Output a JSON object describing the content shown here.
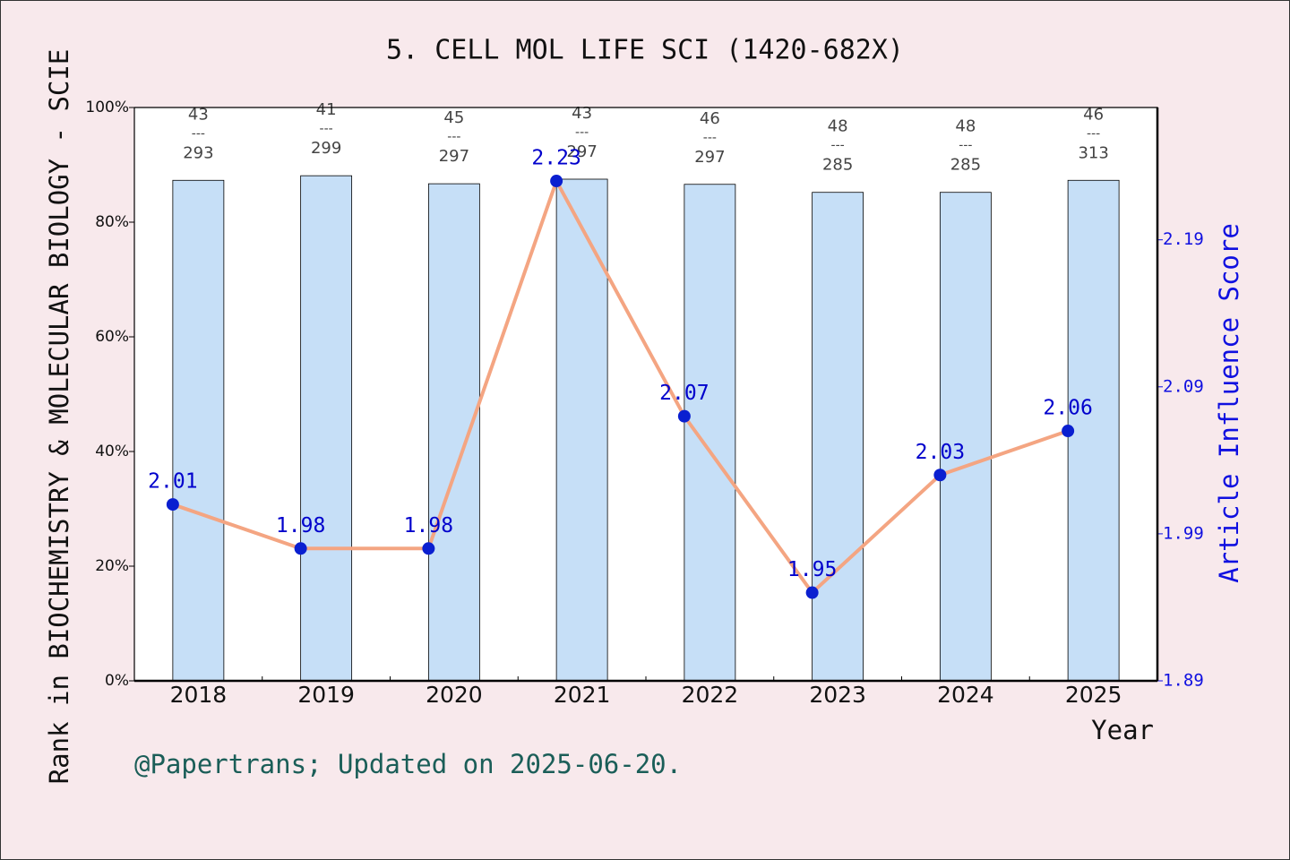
{
  "chart_data": {
    "type": "bar",
    "title": "5. CELL MOL LIFE SCI (1420-682X)",
    "y_label": "Rank in BIOCHEMISTRY & MOLECULAR BIOLOGY - SCIE",
    "y2_label": "Article Influence Score",
    "x_label": "Year",
    "footer": "@Papertrans; Updated on 2025-06-20.",
    "categories": [
      "2018",
      "2019",
      "2020",
      "2021",
      "2022",
      "2023",
      "2024",
      "2025"
    ],
    "ylim": [
      0,
      100
    ],
    "yticks": [
      {
        "value": 0,
        "label": "0%"
      },
      {
        "value": 20,
        "label": "20%"
      },
      {
        "value": 40,
        "label": "40%"
      },
      {
        "value": 60,
        "label": "60%"
      },
      {
        "value": 80,
        "label": "80%"
      },
      {
        "value": 100,
        "label": "100%"
      }
    ],
    "y2lim": [
      1.89,
      2.28
    ],
    "y2ticks": [
      1.89,
      1.99,
      2.09,
      2.19
    ],
    "separator": "---",
    "series": [
      {
        "name": "Rank percentile",
        "type": "bar",
        "color": "#c6dff7",
        "values": [
          87.3,
          88.1,
          86.7,
          87.5,
          86.6,
          85.2,
          85.2,
          87.3
        ],
        "ranks": [
          43,
          41,
          45,
          43,
          46,
          48,
          48,
          46
        ],
        "totals": [
          293,
          299,
          297,
          297,
          297,
          285,
          285,
          313
        ]
      },
      {
        "name": "Article Influence Score",
        "type": "line",
        "axis": "y2",
        "color": "#f4a582",
        "marker_color": "#0a1fd0",
        "label_color": "#0000cc",
        "values": [
          2.01,
          1.98,
          1.98,
          2.23,
          2.07,
          1.95,
          2.03,
          2.06
        ]
      }
    ]
  }
}
